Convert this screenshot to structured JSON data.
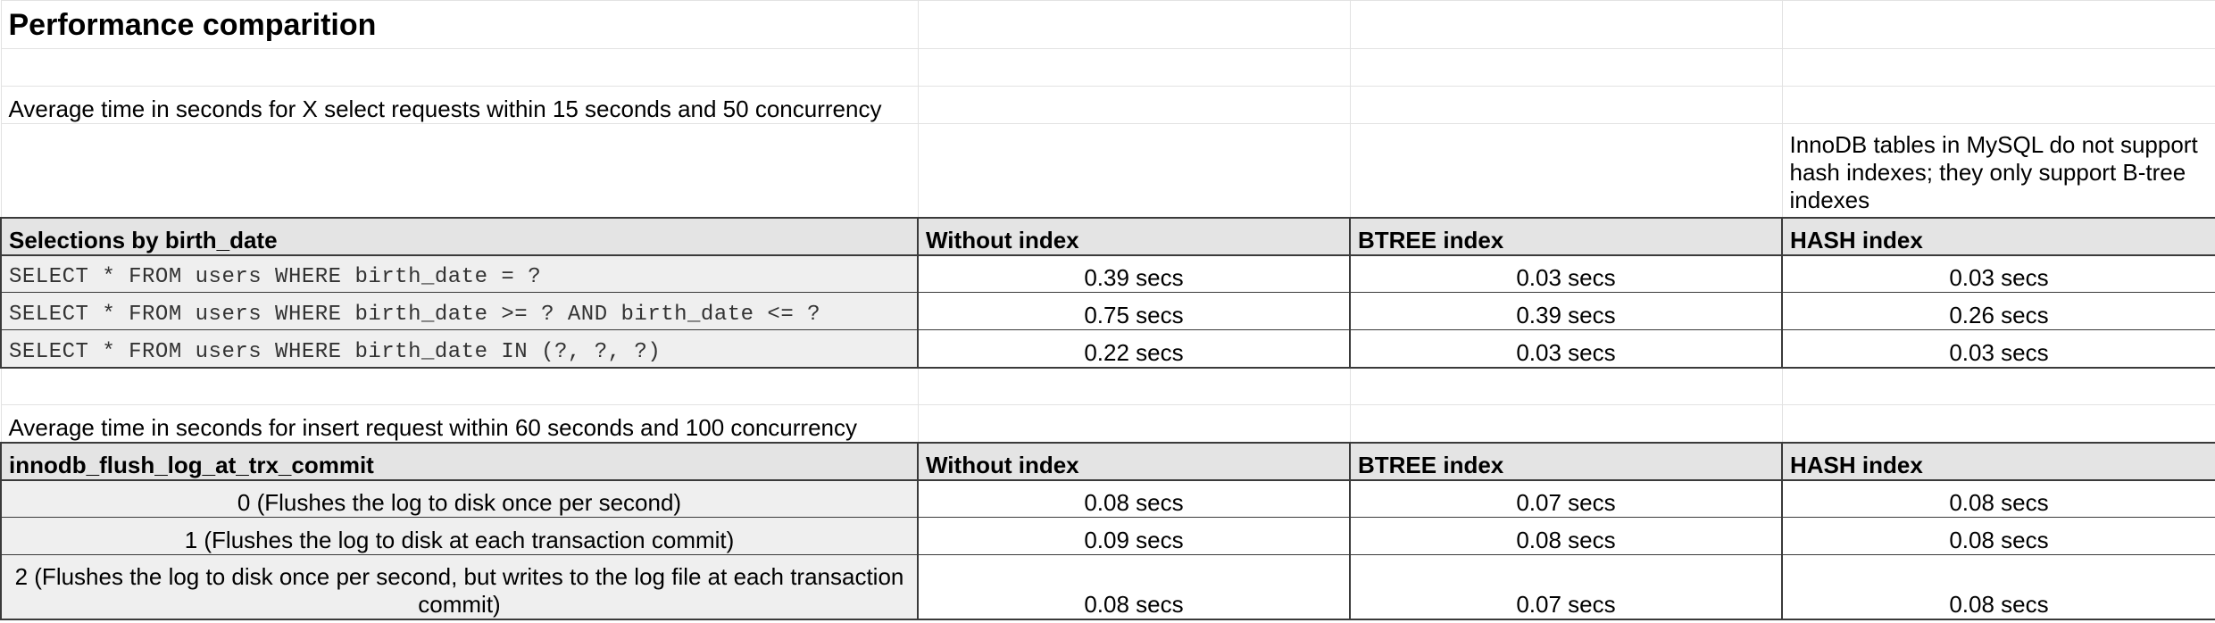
{
  "title": "Performance comparition",
  "select_section": {
    "caption": "Average time in seconds for X select requests within 15 seconds and 50 concurrency",
    "note": "InnoDB tables in MySQL do not support hash indexes; they only support B-tree indexes",
    "headers": [
      "Selections by birth_date",
      "Without index",
      "BTREE index",
      "HASH index"
    ],
    "rows": [
      {
        "query": "SELECT * FROM users WHERE birth_date = ?",
        "without_index": "0.39 secs",
        "btree": "0.03 secs",
        "hash": "0.03 secs"
      },
      {
        "query": "SELECT * FROM users WHERE birth_date >= ? AND birth_date <= ?",
        "without_index": "0.75 secs",
        "btree": "0.39 secs",
        "hash": "0.26 secs"
      },
      {
        "query": "SELECT * FROM users WHERE birth_date IN (?, ?, ?)",
        "without_index": "0.22 secs",
        "btree": "0.03 secs",
        "hash": "0.03 secs"
      }
    ]
  },
  "insert_section": {
    "caption": "Average time in seconds for insert request within 60 seconds and 100 concurrency",
    "headers": [
      "innodb_flush_log_at_trx_commit",
      "Without index",
      "BTREE index",
      "HASH index"
    ],
    "rows": [
      {
        "setting": "0 (Flushes the log to disk once per second)",
        "without_index": "0.08 secs",
        "btree": "0.07 secs",
        "hash": "0.08 secs"
      },
      {
        "setting": "1 (Flushes the log to disk at each transaction commit)",
        "without_index": "0.09 secs",
        "btree": "0.08 secs",
        "hash": "0.08 secs"
      },
      {
        "setting": "2 (Flushes the log to disk once per second, but writes to the log file at each transaction commit)",
        "without_index": "0.08 secs",
        "btree": "0.07 secs",
        "hash": "0.08 secs"
      }
    ]
  }
}
